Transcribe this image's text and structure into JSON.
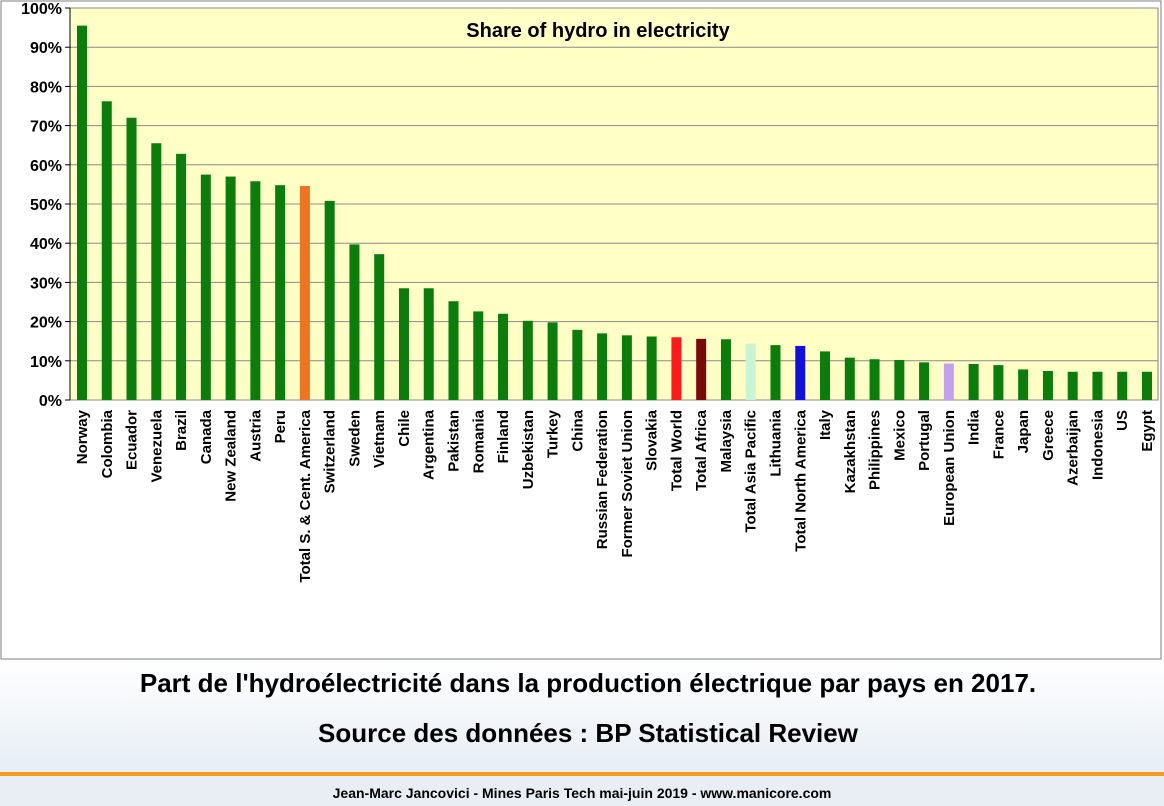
{
  "chart_data": {
    "type": "bar",
    "title": "Share of hydro in electricity",
    "xlabel": "",
    "ylabel": "",
    "ylim": [
      0,
      100
    ],
    "yticks": [
      "0%",
      "10%",
      "20%",
      "30%",
      "40%",
      "50%",
      "60%",
      "70%",
      "80%",
      "90%",
      "100%"
    ],
    "grid": true,
    "legend": "none",
    "categories": [
      "Norway",
      "Colombia",
      "Ecuador",
      "Venezuela",
      "Brazil",
      "Canada",
      "New Zealand",
      "Austria",
      "Peru",
      "Total S. & Cent. America",
      "Switzerland",
      "Sweden",
      "Vietnam",
      "Chile",
      "Argentina",
      "Pakistan",
      "Romania",
      "Finland",
      "Uzbekistan",
      "Turkey",
      "China",
      "Russian Federation",
      "Former Soviet Union",
      "Slovakia",
      "Total World",
      "Total Africa",
      "Malaysia",
      "Total Asia Pacific",
      "Lithuania",
      "Total North America",
      "Italy",
      "Kazakhstan",
      "Philippines",
      "Mexico",
      "Portugal",
      "European Union",
      "India",
      "France",
      "Japan",
      "Greece",
      "Azerbaijan",
      "Indonesia",
      "US",
      "Egypt"
    ],
    "values": [
      95.5,
      76.2,
      72.0,
      65.5,
      62.8,
      57.5,
      57.0,
      55.8,
      54.8,
      54.6,
      50.8,
      39.7,
      37.2,
      28.5,
      28.5,
      25.2,
      22.6,
      22.0,
      20.2,
      19.8,
      17.9,
      17.0,
      16.5,
      16.2,
      16.0,
      15.6,
      15.5,
      14.4,
      14.0,
      13.8,
      12.4,
      10.8,
      10.4,
      10.2,
      9.6,
      9.3,
      9.2,
      8.9,
      7.8,
      7.4,
      7.2,
      7.2,
      7.2,
      7.2
    ],
    "colors": [
      "#0a7d0a",
      "#0a7d0a",
      "#0a7d0a",
      "#0a7d0a",
      "#0a7d0a",
      "#0a7d0a",
      "#0a7d0a",
      "#0a7d0a",
      "#0a7d0a",
      "#f0741f",
      "#0a7d0a",
      "#0a7d0a",
      "#0a7d0a",
      "#0a7d0a",
      "#0a7d0a",
      "#0a7d0a",
      "#0a7d0a",
      "#0a7d0a",
      "#0a7d0a",
      "#0a7d0a",
      "#0a7d0a",
      "#0a7d0a",
      "#0a7d0a",
      "#0a7d0a",
      "#ff1a1a",
      "#7a0a0a",
      "#0a7d0a",
      "#c8f5d2",
      "#0a7d0a",
      "#1010e0",
      "#0a7d0a",
      "#0a7d0a",
      "#0a7d0a",
      "#0a7d0a",
      "#0a7d0a",
      "#c4a0ee",
      "#0a7d0a",
      "#0a7d0a",
      "#0a7d0a",
      "#0a7d0a",
      "#0a7d0a",
      "#0a7d0a",
      "#0a7d0a",
      "#0a7d0a"
    ],
    "plot_background": "#ffffc6"
  },
  "caption": {
    "line1": "Part de l'hydroélectricité dans la production électrique par pays en 2017.",
    "line2": "Source des données : BP Statistical Review"
  },
  "footer": {
    "text": "Jean-Marc Jancovici - Mines Paris Tech mai-juin 2019 - www.manicore.com"
  },
  "colors": {
    "footer_rule": "#f39a1e"
  }
}
